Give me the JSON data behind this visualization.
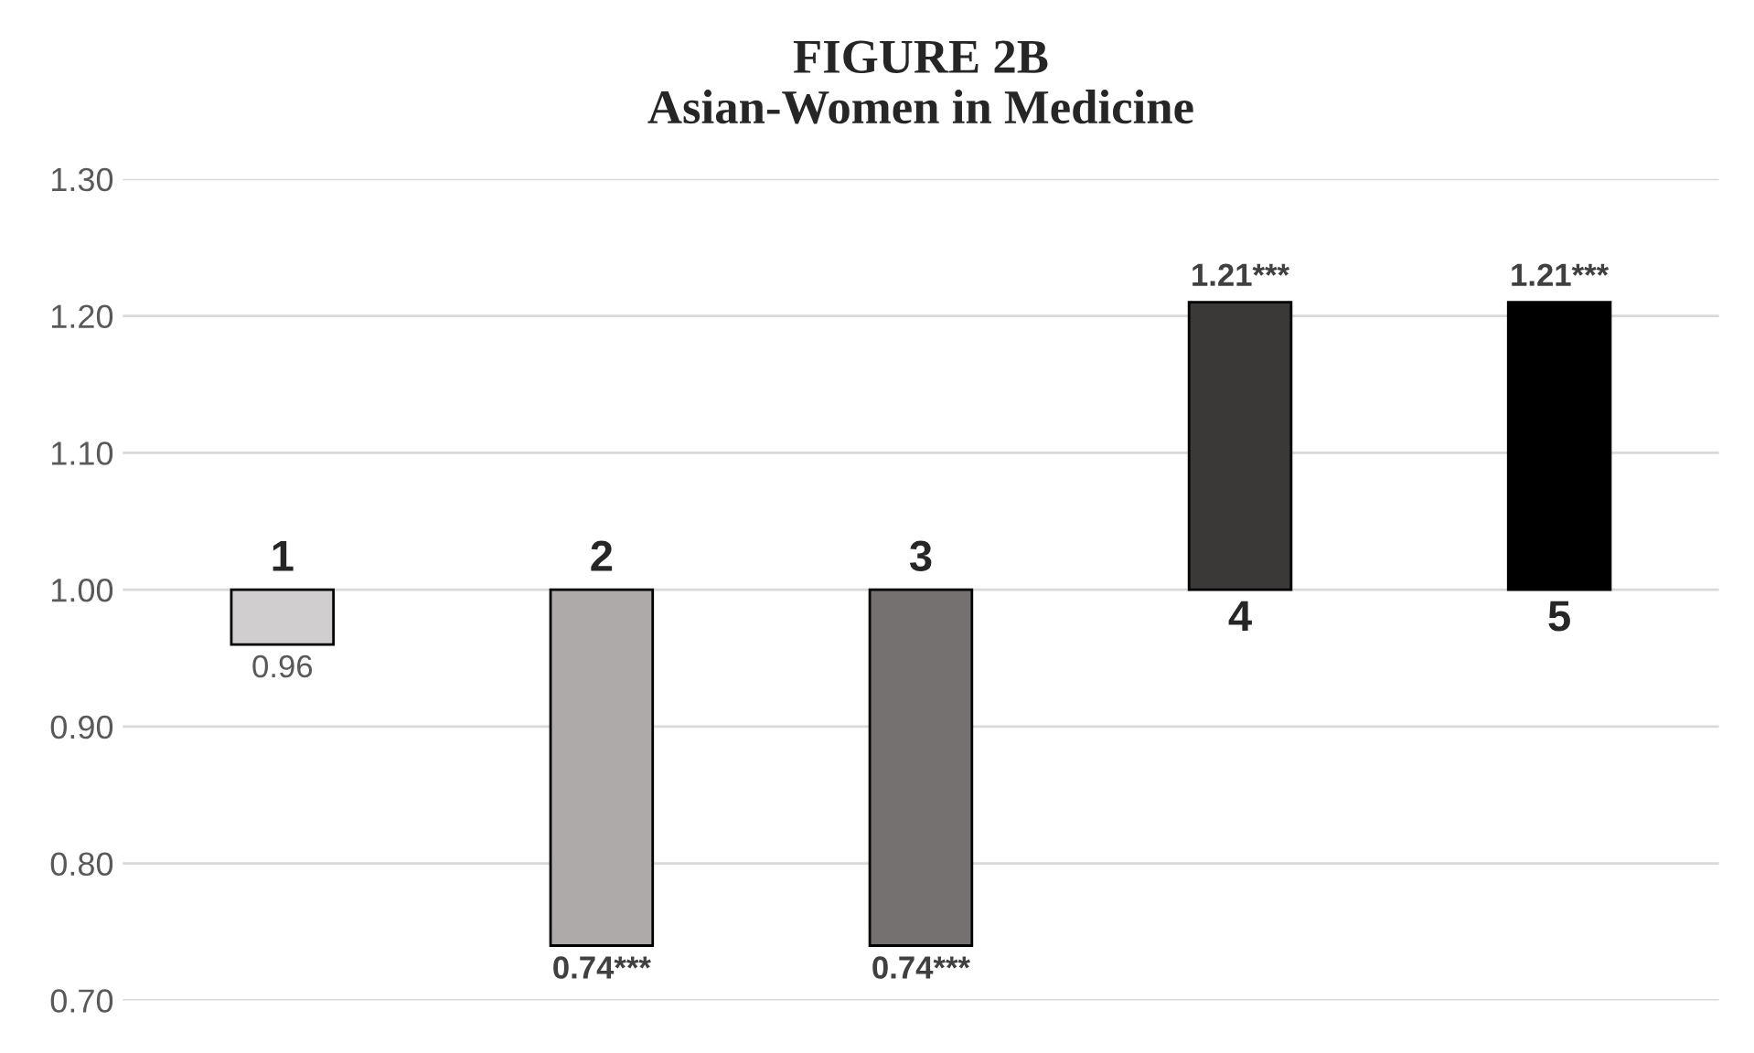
{
  "chart_data": {
    "type": "bar",
    "title": "FIGURE 2B\nAsian-Women in Medicine",
    "categories": [
      "1",
      "2",
      "3",
      "4",
      "5"
    ],
    "base": [
      1.0,
      1.0,
      1.0,
      1.0,
      1.0
    ],
    "values": [
      -0.04,
      -0.26,
      -0.26,
      0.21,
      0.21
    ],
    "value_labels": [
      "0.96",
      "0.74***",
      "0.74***",
      "1.21***",
      "1.21***"
    ],
    "colors": [
      "#d0cece",
      "#aeaaaa",
      "#767171",
      "#3b3838",
      "#000000"
    ],
    "ylim": [
      0.7,
      1.3
    ],
    "yticks": [
      {
        "value": 0.7,
        "label": "0.70"
      },
      {
        "value": 0.8,
        "label": "0.80"
      },
      {
        "value": 0.9,
        "label": "0.90"
      },
      {
        "value": 1.0,
        "label": "1.00"
      },
      {
        "value": 1.1,
        "label": "1.10"
      },
      {
        "value": 1.2,
        "label": "1.20"
      },
      {
        "value": 1.3,
        "label": "1.30"
      }
    ],
    "grid": "y",
    "tick_labels": "y"
  }
}
